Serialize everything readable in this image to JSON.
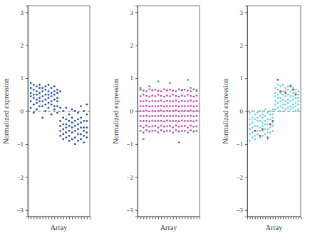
{
  "chart_data": [
    {
      "type": "scatter",
      "xlabel": "Array",
      "ylabel": "Normalized expression",
      "xlim": [
        0,
        21
      ],
      "ylim": [
        -3.2,
        3.2
      ],
      "xticks": [
        1,
        2,
        3,
        4,
        5,
        6,
        7,
        8,
        9,
        10,
        11,
        12,
        13,
        14,
        15,
        16,
        17,
        18,
        19,
        20
      ],
      "yticks": [
        {
          "value": -3,
          "label": "−3"
        },
        {
          "value": -2,
          "label": "−2"
        },
        {
          "value": -1,
          "label": "−1"
        },
        0,
        1,
        2,
        3
      ],
      "tick_labels": "y",
      "hline": 0,
      "x": [
        1,
        2,
        3,
        4,
        5,
        6,
        7,
        8,
        9,
        10,
        11,
        12,
        13,
        14,
        15,
        16,
        17,
        18,
        19,
        20
      ],
      "series": [
        {
          "color": "#2a4ea6",
          "values": [
            [
              0.85,
              0.7,
              0.55,
              0.45,
              0.3,
              0.1
            ],
            [
              0.8,
              0.65,
              0.5,
              0.4,
              0.2,
              -0.05
            ],
            [
              0.75,
              0.6,
              0.5,
              0.35,
              0.25,
              0.05
            ],
            [
              0.8,
              0.7,
              0.55,
              0.4,
              0.3,
              0.15
            ],
            [
              0.7,
              0.6,
              0.45,
              0.3,
              0.15,
              -0.2
            ],
            [
              0.75,
              0.65,
              0.5,
              0.35,
              0.2,
              0.0
            ],
            [
              0.8,
              0.6,
              0.5,
              0.4,
              0.25,
              0.1
            ],
            [
              0.7,
              0.55,
              0.45,
              0.3,
              0.2,
              -0.1
            ],
            [
              0.75,
              0.6,
              0.5,
              0.35,
              0.15,
              0.05
            ],
            [
              0.65,
              0.55,
              0.4,
              0.3,
              0.15,
              -0.05
            ],
            [
              0.6,
              0.1,
              -0.3,
              -0.45,
              -0.6,
              -0.75
            ],
            [
              0.0,
              -0.2,
              -0.4,
              -0.55,
              -0.7,
              -0.85
            ],
            [
              0.1,
              -0.25,
              -0.4,
              -0.5,
              -0.65,
              -0.8
            ],
            [
              -0.1,
              -0.3,
              -0.45,
              -0.6,
              -0.75,
              -0.9
            ],
            [
              0.05,
              -0.2,
              -0.35,
              -0.5,
              -0.65,
              -0.85
            ],
            [
              0.0,
              -0.3,
              -0.45,
              -0.6,
              -0.8,
              -1.0
            ],
            [
              -0.05,
              -0.25,
              -0.4,
              -0.55,
              -0.7,
              -0.9
            ],
            [
              0.15,
              -0.2,
              -0.35,
              -0.5,
              -0.7,
              -0.85
            ],
            [
              0.0,
              -0.3,
              -0.5,
              -0.6,
              -0.75,
              -0.95
            ],
            [
              0.2,
              -0.1,
              -0.3,
              -0.5,
              -0.65,
              -0.8
            ]
          ]
        }
      ]
    },
    {
      "type": "scatter",
      "xlabel": "Array",
      "ylabel": "Normalized expression",
      "xlim": [
        0,
        21
      ],
      "ylim": [
        -3.2,
        3.2
      ],
      "xticks": [
        1,
        2,
        3,
        4,
        5,
        6,
        7,
        8,
        9,
        10,
        11,
        12,
        13,
        14,
        15,
        16,
        17,
        18,
        19,
        20
      ],
      "yticks": [
        {
          "value": -3,
          "label": "−3"
        },
        {
          "value": -2,
          "label": "−2"
        },
        {
          "value": -1,
          "label": "−1"
        },
        0,
        1,
        2,
        3
      ],
      "tick_labels": "y",
      "hline": 0,
      "x": [
        1,
        2,
        3,
        4,
        5,
        6,
        7,
        8,
        9,
        10,
        11,
        12,
        13,
        14,
        15,
        16,
        17,
        18,
        19,
        20
      ],
      "series": [
        {
          "color": "#c04fb4",
          "values": [
            [
              -0.6,
              -0.45,
              -0.3,
              -0.15,
              0.0,
              0.15,
              0.3,
              0.45,
              0.65
            ],
            [
              -0.65,
              -0.5,
              -0.3,
              -0.15,
              0.0,
              0.15,
              0.3,
              0.5,
              0.62
            ],
            [
              -0.58,
              -0.44,
              -0.3,
              -0.14,
              0.02,
              0.16,
              0.32,
              0.46,
              0.6
            ],
            [
              -0.62,
              -0.47,
              -0.31,
              -0.16,
              -0.01,
              0.14,
              0.29,
              0.44,
              0.66
            ],
            [
              -0.6,
              -0.46,
              -0.29,
              -0.15,
              0.01,
              0.15,
              0.31,
              0.47,
              0.63
            ],
            [
              -0.6,
              -0.45,
              -0.3,
              -0.15,
              0.0,
              0.15,
              0.3,
              0.45,
              0.65
            ],
            [
              -0.65,
              -0.5,
              -0.3,
              -0.15,
              0.0,
              0.15,
              0.3,
              0.5,
              0.62
            ],
            [
              -0.58,
              -0.44,
              -0.3,
              -0.14,
              0.02,
              0.16,
              0.32,
              0.46,
              0.6
            ],
            [
              -0.62,
              -0.47,
              -0.31,
              -0.16,
              -0.01,
              0.14,
              0.29,
              0.44,
              0.66
            ],
            [
              -0.6,
              -0.46,
              -0.29,
              -0.15,
              0.01,
              0.15,
              0.31,
              0.47,
              0.63
            ],
            [
              -0.6,
              -0.45,
              -0.3,
              -0.15,
              0.0,
              0.15,
              0.3,
              0.45,
              0.65
            ],
            [
              -0.65,
              -0.5,
              -0.3,
              -0.15,
              0.0,
              0.15,
              0.3,
              0.5,
              0.62
            ],
            [
              -0.58,
              -0.44,
              -0.3,
              -0.14,
              0.02,
              0.16,
              0.32,
              0.46,
              0.6
            ],
            [
              -0.95,
              -0.62,
              -0.47,
              -0.31,
              -0.16,
              -0.01,
              0.14,
              0.29,
              0.44,
              0.66
            ],
            [
              -0.6,
              -0.46,
              -0.29,
              -0.15,
              0.01,
              0.15,
              0.31,
              0.47,
              0.63
            ],
            [
              -0.6,
              -0.45,
              -0.3,
              -0.15,
              0.0,
              0.15,
              0.3,
              0.45,
              0.65
            ],
            [
              -0.65,
              -0.5,
              -0.3,
              -0.15,
              0.0,
              0.15,
              0.3,
              0.5,
              0.62
            ],
            [
              -0.58,
              -0.44,
              -0.3,
              -0.14,
              0.02,
              0.16,
              0.32,
              0.46,
              0.6
            ],
            [
              -0.62,
              -0.47,
              -0.31,
              -0.16,
              -0.01,
              0.14,
              0.29,
              0.44,
              0.66
            ],
            [
              -0.6,
              -0.46,
              -0.29,
              -0.15,
              0.01,
              0.15,
              0.31,
              0.47,
              0.63
            ]
          ]
        },
        {
          "color": "#3cbf3c",
          "values": [
            [
              0.7
            ],
            [
              -0.85
            ],
            [],
            [
              0.75
            ],
            [],
            [],
            [
              0.9
            ],
            [],
            [],
            [],
            [
              0.85
            ],
            [],
            [],
            [],
            [
              0.65
            ],
            [],
            [
              0.95
            ],
            [
              0.7
            ],
            [],
            [
              0.6
            ]
          ]
        }
      ]
    },
    {
      "type": "scatter",
      "xlabel": "Array",
      "ylabel": "Normalized expression",
      "xlim": [
        0,
        21
      ],
      "ylim": [
        -3.2,
        3.2
      ],
      "xticks": [
        1,
        2,
        3,
        4,
        5,
        6,
        7,
        8,
        9,
        10,
        11,
        12,
        13,
        14,
        15,
        16,
        17,
        18,
        19,
        20
      ],
      "yticks": [
        {
          "value": -3,
          "label": "−3"
        },
        {
          "value": -2,
          "label": "−2"
        },
        {
          "value": -1,
          "label": "−1"
        },
        0,
        1,
        2,
        3
      ],
      "tick_labels": "y",
      "hline": 0,
      "x": [
        1,
        2,
        3,
        4,
        5,
        6,
        7,
        8,
        9,
        10,
        11,
        12,
        13,
        14,
        15,
        16,
        17,
        18,
        19,
        20
      ],
      "series": [
        {
          "color": "#6fd3e3",
          "values": [
            [
              -0.05,
              -0.25,
              -0.4,
              -0.55,
              -0.7,
              -0.9
            ],
            [
              0.0,
              -0.2,
              -0.35,
              -0.5,
              -0.65,
              -0.8
            ],
            [
              -0.1,
              -0.25,
              -0.45,
              -0.6,
              -0.75,
              -0.85
            ],
            [
              -0.05,
              -0.2,
              -0.3,
              -0.45,
              -0.6,
              -0.7
            ],
            [
              0.0,
              -0.15,
              -0.3,
              -0.5,
              -0.6,
              -0.8
            ],
            [
              -0.1,
              -0.2,
              -0.35,
              -0.45,
              -0.6,
              -0.75
            ],
            [
              0.05,
              -0.15,
              -0.3,
              -0.4,
              -0.55,
              -0.7
            ],
            [
              -0.05,
              -0.25,
              -0.4,
              -0.55,
              -0.65,
              -0.85
            ],
            [
              0.0,
              -0.1,
              -0.25,
              -0.4,
              -0.5,
              -0.65
            ],
            [
              0.05,
              -0.1,
              -0.2,
              -0.35,
              -0.45,
              -0.6
            ],
            [
              0.05,
              0.2,
              0.3,
              0.45,
              0.55,
              0.7
            ],
            [
              0.1,
              0.25,
              0.4,
              0.5,
              0.65,
              0.8
            ],
            [
              0.0,
              0.15,
              0.3,
              0.4,
              0.55,
              0.75
            ],
            [
              0.1,
              0.2,
              0.35,
              0.5,
              0.6,
              0.8
            ],
            [
              0.05,
              0.2,
              0.3,
              0.45,
              0.6,
              0.7
            ],
            [
              0.1,
              0.25,
              0.35,
              0.5,
              0.65,
              0.75
            ],
            [
              0.05,
              0.15,
              0.3,
              0.45,
              0.6,
              0.8
            ],
            [
              0.1,
              0.2,
              0.35,
              0.45,
              0.55,
              0.7
            ],
            [
              0.0,
              0.15,
              0.25,
              0.4,
              0.55,
              0.65
            ],
            [
              0.05,
              0.2,
              0.3,
              0.4,
              0.5,
              0.6
            ]
          ]
        },
        {
          "color": "#e0283c",
          "values": [
            [],
            [],
            [
              -0.6
            ],
            [],
            [
              -0.75
            ],
            [
              -0.55
            ],
            [],
            [
              -0.8
            ],
            [
              -0.4
            ],
            [
              -0.3
            ],
            [],
            [
              0.95
            ],
            [
              0.6
            ],
            [],
            [
              0.55
            ],
            [],
            [
              0.75
            ],
            [
              0.65
            ],
            [
              0.5
            ],
            []
          ]
        }
      ]
    }
  ]
}
